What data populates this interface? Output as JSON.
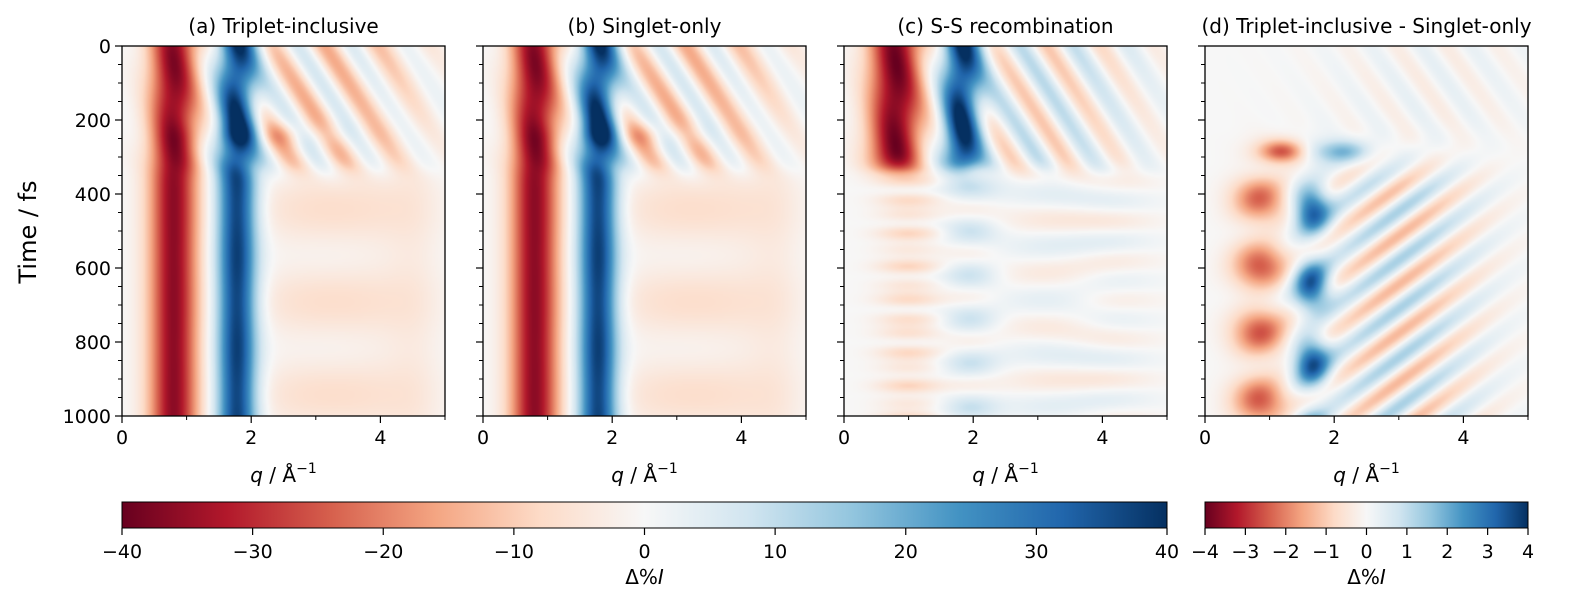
{
  "figure": {
    "ylabel": "Time / fs",
    "xlabel_prefix": "q",
    "xlabel_suffix": " / Å",
    "xlabel_exp": "−1",
    "cbar_label_prefix": "Δ%",
    "cbar_label_var": "I"
  },
  "chart_data": [
    {
      "id": "a",
      "type": "heatmap",
      "title": "(a) Triplet-inclusive",
      "x_range": [
        0,
        5
      ],
      "y_range": [
        0,
        1000
      ],
      "y_inverted": true,
      "xticks": [
        0,
        2,
        4
      ],
      "yticks": [
        0,
        200,
        400,
        600,
        800,
        1000
      ],
      "colormap": "RdBu",
      "clim": [
        -40,
        40
      ],
      "pattern": "full",
      "features": "negative band near q≈0.8 (~-35), positive band near q≈1.8 (~+38); oscillating structure before ~350 fs"
    },
    {
      "id": "b",
      "type": "heatmap",
      "title": "(b) Singlet-only",
      "x_range": [
        0,
        5
      ],
      "y_range": [
        0,
        1000
      ],
      "y_inverted": true,
      "xticks": [
        0,
        2,
        4
      ],
      "yticks": [
        0,
        200,
        400,
        600,
        800,
        1000
      ],
      "colormap": "RdBu",
      "clim": [
        -40,
        40
      ],
      "pattern": "full",
      "features": "very similar to (a)"
    },
    {
      "id": "c",
      "type": "heatmap",
      "title": "(c) S-S recombination",
      "x_range": [
        0,
        5
      ],
      "y_range": [
        0,
        1000
      ],
      "y_inverted": true,
      "xticks": [
        0,
        2,
        4
      ],
      "yticks": [
        0,
        200,
        400,
        600,
        800,
        1000
      ],
      "colormap": "RdBu",
      "clim": [
        -40,
        40
      ],
      "pattern": "recomb",
      "features": "strong signal before ~350 fs, weak striped signal afterwards"
    },
    {
      "id": "d",
      "type": "heatmap",
      "title": "(d) Triplet-inclusive - Singlet-only",
      "x_range": [
        0,
        5
      ],
      "y_range": [
        0,
        1000
      ],
      "y_inverted": true,
      "xticks": [
        0,
        2,
        4
      ],
      "yticks": [
        0,
        200,
        400,
        600,
        800,
        1000
      ],
      "colormap": "RdBu",
      "clim": [
        -4,
        4
      ],
      "pattern": "diff",
      "features": "difference signal appearing after ~250 fs; negative near q≈0.8, positive near q≈1.6"
    }
  ],
  "colorbars": [
    {
      "id": "main",
      "range": [
        -40,
        40
      ],
      "ticks": [
        -40,
        -30,
        -20,
        -10,
        0,
        10,
        20,
        30,
        40
      ],
      "label": "Δ%I"
    },
    {
      "id": "diff",
      "range": [
        -4,
        4
      ],
      "ticks": [
        -4,
        -3,
        -2,
        -1,
        0,
        1,
        2,
        3,
        4
      ],
      "label": "Δ%I"
    }
  ]
}
